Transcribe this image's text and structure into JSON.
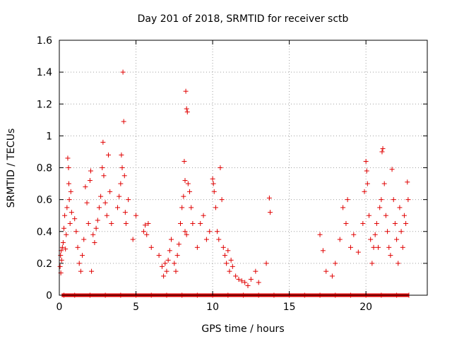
{
  "chart_data": {
    "type": "scatter",
    "title": "Day 201 of 2018, SRMTID for receiver sctb",
    "xlabel": "GPS time / hours",
    "ylabel": "SRMTID / TECUs",
    "xlim": [
      0,
      24
    ],
    "ylim": [
      0,
      1.6
    ],
    "grid": true,
    "marker": "+",
    "series_color": "#e00000",
    "xticks": [
      0,
      5,
      10,
      15,
      20
    ],
    "xtick_labels": [
      "0",
      "5",
      "10",
      "15",
      "20"
    ],
    "yticks": [
      0,
      0.2,
      0.4,
      0.6,
      0.8,
      1.0,
      1.2,
      1.4,
      1.6
    ],
    "ytick_labels": [
      "0",
      "0.2",
      "0.4",
      "0.6",
      "0.8",
      "1",
      "1.2",
      "1.4",
      "1.6"
    ],
    "series": [
      {
        "name": "SRMTID",
        "points": [
          [
            0.05,
            0.18
          ],
          [
            0.08,
            0.25
          ],
          [
            0.1,
            0.14
          ],
          [
            0.12,
            0.28
          ],
          [
            0.15,
            0.22
          ],
          [
            0.2,
            0.3
          ],
          [
            0.25,
            0.33
          ],
          [
            0.3,
            0.42
          ],
          [
            0.35,
            0.5
          ],
          [
            0.4,
            0.29
          ],
          [
            0.45,
            0.38
          ],
          [
            0.5,
            0.55
          ],
          [
            0.55,
            0.86
          ],
          [
            0.6,
            0.8
          ],
          [
            0.62,
            0.7
          ],
          [
            0.65,
            0.6
          ],
          [
            0.7,
            0.45
          ],
          [
            0.75,
            0.65
          ],
          [
            0.8,
            0.52
          ],
          [
            1.0,
            0.48
          ],
          [
            1.1,
            0.4
          ],
          [
            1.2,
            0.3
          ],
          [
            1.3,
            0.2
          ],
          [
            1.4,
            0.15
          ],
          [
            1.5,
            0.25
          ],
          [
            1.6,
            0.35
          ],
          [
            1.7,
            0.68
          ],
          [
            1.8,
            0.58
          ],
          [
            1.9,
            0.45
          ],
          [
            2.0,
            0.72
          ],
          [
            2.05,
            0.78
          ],
          [
            2.1,
            0.15
          ],
          [
            2.2,
            0.38
          ],
          [
            2.3,
            0.33
          ],
          [
            2.4,
            0.42
          ],
          [
            2.5,
            0.47
          ],
          [
            2.6,
            0.55
          ],
          [
            2.7,
            0.62
          ],
          [
            2.8,
            0.8
          ],
          [
            2.85,
            0.96
          ],
          [
            2.9,
            0.75
          ],
          [
            3.0,
            0.58
          ],
          [
            3.1,
            0.5
          ],
          [
            3.2,
            0.88
          ],
          [
            3.3,
            0.65
          ],
          [
            3.4,
            0.45
          ],
          [
            3.8,
            0.55
          ],
          [
            3.9,
            0.62
          ],
          [
            4.0,
            0.7
          ],
          [
            4.05,
            0.88
          ],
          [
            4.1,
            0.8
          ],
          [
            4.15,
            1.4
          ],
          [
            4.2,
            1.09
          ],
          [
            4.25,
            0.75
          ],
          [
            4.3,
            0.52
          ],
          [
            4.35,
            0.45
          ],
          [
            4.5,
            0.6
          ],
          [
            4.8,
            0.35
          ],
          [
            5.0,
            0.5
          ],
          [
            5.5,
            0.4
          ],
          [
            5.6,
            0.44
          ],
          [
            5.7,
            0.38
          ],
          [
            5.8,
            0.45
          ],
          [
            6.0,
            0.3
          ],
          [
            6.5,
            0.25
          ],
          [
            6.7,
            0.18
          ],
          [
            6.8,
            0.12
          ],
          [
            6.9,
            0.2
          ],
          [
            7.0,
            0.15
          ],
          [
            7.1,
            0.22
          ],
          [
            7.2,
            0.28
          ],
          [
            7.3,
            0.35
          ],
          [
            7.5,
            0.2
          ],
          [
            7.6,
            0.15
          ],
          [
            7.7,
            0.25
          ],
          [
            7.8,
            0.32
          ],
          [
            7.9,
            0.45
          ],
          [
            8.0,
            0.55
          ],
          [
            8.1,
            0.62
          ],
          [
            8.15,
            0.84
          ],
          [
            8.2,
            0.72
          ],
          [
            8.25,
            1.28
          ],
          [
            8.3,
            1.17
          ],
          [
            8.35,
            1.15
          ],
          [
            8.4,
            0.7
          ],
          [
            8.5,
            0.65
          ],
          [
            8.6,
            0.55
          ],
          [
            8.7,
            0.45
          ],
          [
            8.3,
            0.38
          ],
          [
            8.2,
            0.4
          ],
          [
            9.0,
            0.3
          ],
          [
            9.2,
            0.45
          ],
          [
            9.4,
            0.5
          ],
          [
            9.6,
            0.35
          ],
          [
            9.8,
            0.4
          ],
          [
            10.0,
            0.73
          ],
          [
            10.05,
            0.7
          ],
          [
            10.1,
            0.65
          ],
          [
            10.2,
            0.55
          ],
          [
            10.3,
            0.4
          ],
          [
            10.4,
            0.35
          ],
          [
            10.5,
            0.8
          ],
          [
            10.6,
            0.6
          ],
          [
            10.7,
            0.3
          ],
          [
            10.8,
            0.25
          ],
          [
            10.9,
            0.2
          ],
          [
            11.0,
            0.28
          ],
          [
            11.1,
            0.15
          ],
          [
            11.2,
            0.22
          ],
          [
            11.3,
            0.18
          ],
          [
            11.5,
            0.12
          ],
          [
            11.7,
            0.1
          ],
          [
            11.9,
            0.09
          ],
          [
            12.1,
            0.08
          ],
          [
            12.3,
            0.06
          ],
          [
            12.5,
            0.1
          ],
          [
            12.8,
            0.15
          ],
          [
            13.0,
            0.08
          ],
          [
            13.5,
            0.2
          ],
          [
            13.7,
            0.61
          ],
          [
            13.75,
            0.52
          ],
          [
            17.0,
            0.38
          ],
          [
            17.2,
            0.28
          ],
          [
            17.4,
            0.15
          ],
          [
            17.8,
            0.12
          ],
          [
            18.0,
            0.2
          ],
          [
            18.3,
            0.35
          ],
          [
            18.5,
            0.55
          ],
          [
            18.7,
            0.45
          ],
          [
            18.8,
            0.6
          ],
          [
            19.0,
            0.3
          ],
          [
            19.2,
            0.38
          ],
          [
            19.5,
            0.27
          ],
          [
            19.8,
            0.45
          ],
          [
            19.9,
            0.65
          ],
          [
            20.0,
            0.84
          ],
          [
            20.05,
            0.78
          ],
          [
            20.1,
            0.7
          ],
          [
            20.2,
            0.5
          ],
          [
            20.3,
            0.35
          ],
          [
            20.4,
            0.2
          ],
          [
            20.5,
            0.3
          ],
          [
            20.6,
            0.38
          ],
          [
            20.7,
            0.45
          ],
          [
            20.8,
            0.3
          ],
          [
            20.9,
            0.55
          ],
          [
            21.0,
            0.6
          ],
          [
            21.05,
            0.9
          ],
          [
            21.1,
            0.92
          ],
          [
            21.2,
            0.7
          ],
          [
            21.3,
            0.5
          ],
          [
            21.4,
            0.4
          ],
          [
            21.5,
            0.3
          ],
          [
            21.6,
            0.25
          ],
          [
            21.7,
            0.79
          ],
          [
            21.8,
            0.6
          ],
          [
            21.9,
            0.45
          ],
          [
            22.0,
            0.35
          ],
          [
            22.1,
            0.2
          ],
          [
            22.2,
            0.55
          ],
          [
            22.3,
            0.4
          ],
          [
            22.4,
            0.3
          ],
          [
            22.5,
            0.5
          ],
          [
            22.6,
            0.45
          ],
          [
            22.7,
            0.71
          ],
          [
            22.75,
            0.6
          ],
          [
            0.3,
            0.0
          ],
          [
            1.0,
            0.0
          ],
          [
            2.0,
            0.0
          ],
          [
            3.0,
            0.0
          ],
          [
            4.0,
            0.0
          ],
          [
            5.0,
            0.0
          ],
          [
            6.0,
            0.0
          ],
          [
            7.0,
            0.0
          ],
          [
            8.0,
            0.0
          ],
          [
            9.0,
            0.0
          ],
          [
            10.0,
            0.0
          ],
          [
            11.0,
            0.0
          ],
          [
            12.0,
            0.0
          ],
          [
            13.0,
            0.0
          ],
          [
            14.0,
            0.0
          ],
          [
            15.0,
            0.0
          ],
          [
            16.0,
            0.0
          ],
          [
            17.0,
            0.0
          ],
          [
            18.0,
            0.0
          ],
          [
            19.0,
            0.0
          ],
          [
            20.0,
            0.0
          ],
          [
            21.0,
            0.0
          ],
          [
            22.0,
            0.0
          ],
          [
            22.8,
            0.0
          ]
        ]
      }
    ]
  }
}
